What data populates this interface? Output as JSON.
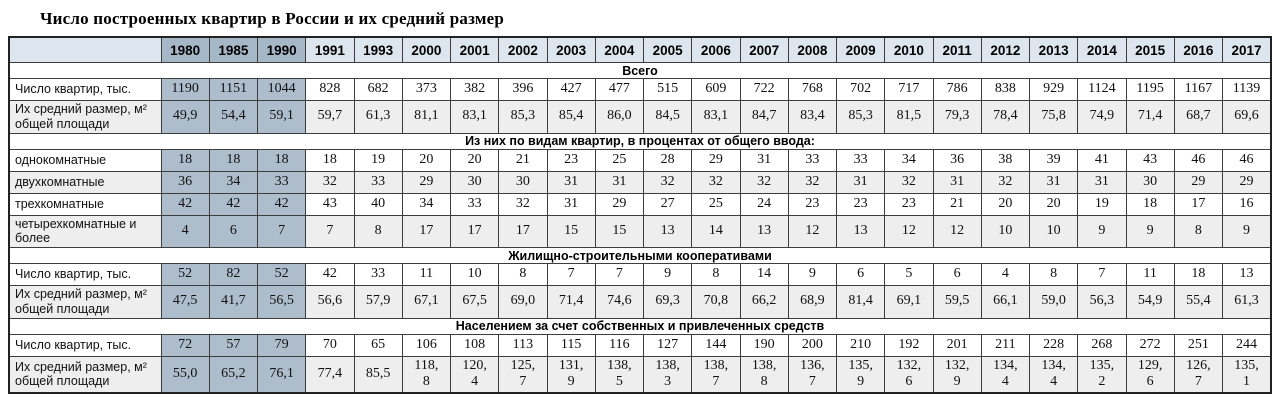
{
  "title": "Число построенных квартир в России  и их средний размер",
  "colors": {
    "header_cell": "#dde5ee",
    "header_highlight": "#a6b7c7",
    "cell_highlight": "#aebdcc",
    "row_stripe": "#eeeeee",
    "border": "#3d3d3d"
  },
  "table": {
    "corner_label": "",
    "years": [
      "1980",
      "1985",
      "1990",
      "1991",
      "1993",
      "2000",
      "2001",
      "2002",
      "2003",
      "2004",
      "2005",
      "2006",
      "2007",
      "2008",
      "2009",
      "2010",
      "2011",
      "2012",
      "2013",
      "2014",
      "2015",
      "2016",
      "2017"
    ],
    "highlighted_year_count": 3,
    "sections": [
      {
        "header": "Всего",
        "rows": [
          {
            "label": "Число квартир, тыс.",
            "values": [
              "1190",
              "1151",
              "1044",
              "828",
              "682",
              "373",
              "382",
              "396",
              "427",
              "477",
              "515",
              "609",
              "722",
              "768",
              "702",
              "717",
              "786",
              "838",
              "929",
              "1124",
              "1195",
              "1167",
              "1139"
            ]
          },
          {
            "label": "Их средний размер, м² общей площади",
            "values": [
              "49,9",
              "54,4",
              "59,1",
              "59,7",
              "61,3",
              "81,1",
              "83,1",
              "85,3",
              "85,4",
              "86,0",
              "84,5",
              "83,1",
              "84,7",
              "83,4",
              "85,3",
              "81,5",
              "79,3",
              "78,4",
              "75,8",
              "74,9",
              "71,4",
              "68,7",
              "69,6"
            ]
          }
        ]
      },
      {
        "header": "Из них по видам квартир, в процентах от общего ввода:",
        "rows": [
          {
            "label": "однокомнатные",
            "values": [
              "18",
              "18",
              "18",
              "18",
              "19",
              "20",
              "20",
              "21",
              "23",
              "25",
              "28",
              "29",
              "31",
              "33",
              "33",
              "34",
              "36",
              "38",
              "39",
              "41",
              "43",
              "46",
              "46"
            ]
          },
          {
            "label": "двухкомнатные",
            "values": [
              "36",
              "34",
              "33",
              "32",
              "33",
              "29",
              "30",
              "30",
              "31",
              "31",
              "32",
              "32",
              "32",
              "32",
              "31",
              "32",
              "31",
              "32",
              "31",
              "31",
              "30",
              "29",
              "29"
            ]
          },
          {
            "label": "трехкомнатные",
            "values": [
              "42",
              "42",
              "42",
              "43",
              "40",
              "34",
              "33",
              "32",
              "31",
              "29",
              "27",
              "25",
              "24",
              "23",
              "23",
              "23",
              "21",
              "20",
              "20",
              "19",
              "18",
              "17",
              "16"
            ]
          },
          {
            "label": "четырехкомнатные и более",
            "values": [
              "4",
              "6",
              "7",
              "7",
              "8",
              "17",
              "17",
              "17",
              "15",
              "15",
              "13",
              "14",
              "13",
              "12",
              "13",
              "12",
              "12",
              "10",
              "10",
              "9",
              "9",
              "8",
              "9"
            ]
          }
        ]
      },
      {
        "header": "Жилищно-строительными кооперативами",
        "rows": [
          {
            "label": "Число квартир, тыс.",
            "values": [
              "52",
              "82",
              "52",
              "42",
              "33",
              "11",
              "10",
              "8",
              "7",
              "7",
              "9",
              "8",
              "14",
              "9",
              "6",
              "5",
              "6",
              "4",
              "8",
              "7",
              "11",
              "18",
              "13"
            ]
          },
          {
            "label": "Их средний размер, м² общей площади",
            "values": [
              "47,5",
              "41,7",
              "56,5",
              "56,6",
              "57,9",
              "67,1",
              "67,5",
              "69,0",
              "71,4",
              "74,6",
              "69,3",
              "70,8",
              "66,2",
              "68,9",
              "81,4",
              "69,1",
              "59,5",
              "66,1",
              "59,0",
              "56,3",
              "54,9",
              "55,4",
              "61,3"
            ]
          }
        ]
      },
      {
        "header": "Населением за счет собственных и привлеченных средств",
        "rows": [
          {
            "label": "Число квартир, тыс.",
            "values": [
              "72",
              "57",
              "79",
              "70",
              "65",
              "106",
              "108",
              "113",
              "115",
              "116",
              "127",
              "144",
              "190",
              "200",
              "210",
              "192",
              "201",
              "211",
              "228",
              "268",
              "272",
              "251",
              "244"
            ]
          },
          {
            "label": "Их средний размер, м² общей площади",
            "values": [
              "55,0",
              "65,2",
              "76,1",
              "77,4",
              "85,5",
              "118,8",
              "120,4",
              "125,7",
              "131,9",
              "138,5",
              "138,3",
              "138,7",
              "138,8",
              "136,7",
              "135,9",
              "132,6",
              "132,9",
              "134,4",
              "134,4",
              "135,2",
              "129,6",
              "126,7",
              "135,1"
            ],
            "break_comma": true
          }
        ]
      }
    ]
  }
}
